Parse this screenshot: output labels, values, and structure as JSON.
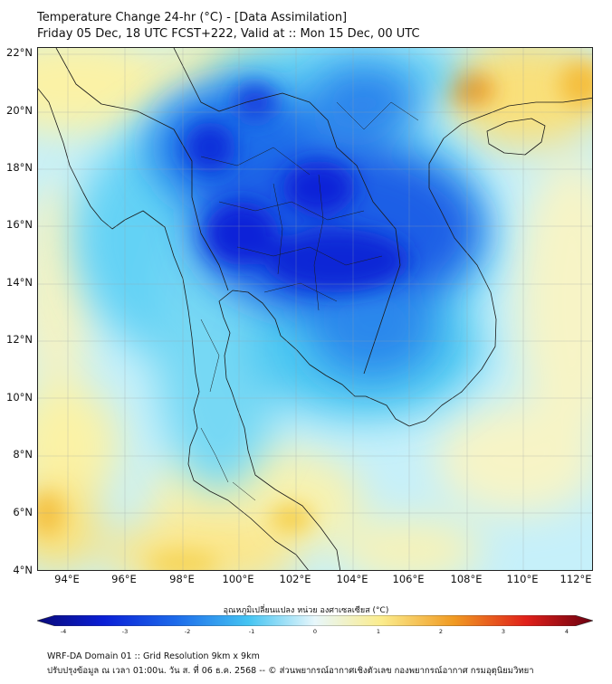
{
  "header": {
    "title_line1": "Temperature Change 24-hr (°C) - [Data Assimilation]",
    "title_line2": "Friday 05 Dec, 18 UTC FCST+222, Valid at :: Mon 15 Dec, 00 UTC"
  },
  "map": {
    "lat_labels": [
      "22°N",
      "20°N",
      "18°N",
      "16°N",
      "14°N",
      "12°N",
      "10°N",
      "8°N",
      "6°N",
      "4°N"
    ],
    "lon_labels": [
      "94°E",
      "96°E",
      "98°E",
      "100°E",
      "102°E",
      "104°E",
      "106°E",
      "108°E",
      "110°E",
      "112°E"
    ],
    "colors": {
      "ocean_base": "#c6f0fa",
      "strong_cool": "#0a1fd6",
      "moderate_cool": "#1d6bea",
      "mild_cool": "#44c4f2",
      "warm": "#fbec8c",
      "hot": "#f09a22",
      "border": "#1a1a1a"
    }
  },
  "colorbar": {
    "title": "อุณหภูมิเปลี่ยนแปลง หน่วย องศาเซลเซียส (°C)",
    "ticks": [
      "-4",
      "-3",
      "-2",
      "-1",
      "0",
      "1",
      "2",
      "3",
      "4"
    ]
  },
  "footer": {
    "line1": "WRF-DA Domain 01 :: Grid Resolution 9km x 9km",
    "line2": "ปรับปรุงข้อมูล ณ เวลา 01:00น. วัน ส. ที่ 06 ธ.ค. 2568 -- © ส่วนพยากรณ์อากาศเชิงตัวเลข กองพยากรณ์อากาศ กรมอุตุนิยมวิทยา"
  }
}
